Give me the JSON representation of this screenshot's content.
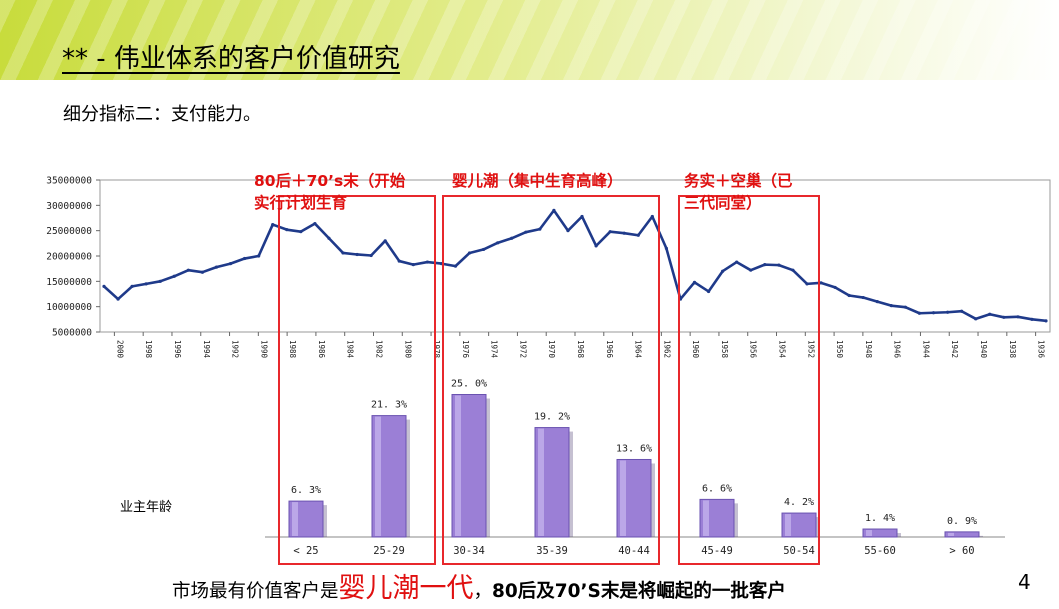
{
  "slide": {
    "title": "** - 伟业体系的客户价值研究",
    "subtitle": "细分指标二：支付能力。",
    "page_number": "4",
    "age_axis_label": "业主年龄",
    "annotations": [
      {
        "line1": "80后＋70’s末（开始",
        "line2": "实行计划生育"
      },
      {
        "line1": "婴儿潮（集中生育高峰）",
        "line2": ""
      },
      {
        "line1": "务实＋空巢（已",
        "line2": "三代同堂）"
      }
    ],
    "conclusion": {
      "part1": "市场最有价值客户是",
      "highlight": "婴儿潮一代",
      "part2": "，",
      "part3": "80后及70’S末是将崛起的一批客户"
    },
    "colors": {
      "accent": "#e8282c",
      "line": "#1f3a8a",
      "bar": "#9b7fd6"
    }
  },
  "chart_data": [
    {
      "type": "line",
      "title": "",
      "ylim": [
        5000000,
        35000000
      ],
      "yticks": [
        "35000000",
        "30000000",
        "25000000",
        "20000000",
        "15000000",
        "10000000",
        "5000000"
      ],
      "xtick_labels": [
        "2000",
        "1998",
        "1996",
        "1994",
        "1992",
        "1990",
        "1988",
        "1986",
        "1984",
        "1982",
        "1980",
        "1978",
        "1976",
        "1974",
        "1972",
        "1970",
        "1968",
        "1966",
        "1964",
        "1962",
        "1960",
        "1958",
        "1956",
        "1954",
        "1952",
        "1950",
        "1948",
        "1946",
        "1944",
        "1942",
        "1940",
        "1938",
        "1936"
      ],
      "values": [
        14000000,
        11500000,
        14000000,
        14500000,
        15000000,
        16000000,
        17200000,
        16800000,
        17800000,
        18500000,
        19500000,
        20000000,
        26200000,
        25200000,
        24800000,
        26400000,
        23500000,
        20600000,
        20300000,
        20100000,
        23000000,
        19000000,
        18300000,
        18800000,
        18500000,
        18000000,
        20600000,
        21300000,
        22600000,
        23500000,
        24700000,
        25300000,
        29000000,
        25000000,
        27800000,
        22000000,
        24800000,
        24500000,
        24100000,
        27800000,
        21500000,
        11500000,
        14800000,
        13000000,
        17000000,
        18800000,
        17200000,
        18300000,
        18200000,
        17200000,
        14500000,
        14700000,
        13800000,
        12200000,
        11800000,
        11000000,
        10200000,
        9900000,
        8700000,
        8800000,
        8900000,
        9100000,
        7600000,
        8500000,
        7900000,
        8000000,
        7500000,
        7200000
      ]
    },
    {
      "type": "bar",
      "categories": [
        "< 25",
        "25-29",
        "30-34",
        "35-39",
        "40-44",
        "45-49",
        "50-54",
        "55-60",
        "> 60"
      ],
      "values": [
        6.3,
        21.3,
        25.0,
        19.2,
        13.6,
        6.6,
        4.2,
        1.4,
        0.9
      ],
      "data_labels": [
        "6. 3%",
        "21. 3%",
        "25. 0%",
        "19. 2%",
        "13. 6%",
        "6. 6%",
        "4. 2%",
        "1. 4%",
        "0. 9%"
      ]
    }
  ]
}
